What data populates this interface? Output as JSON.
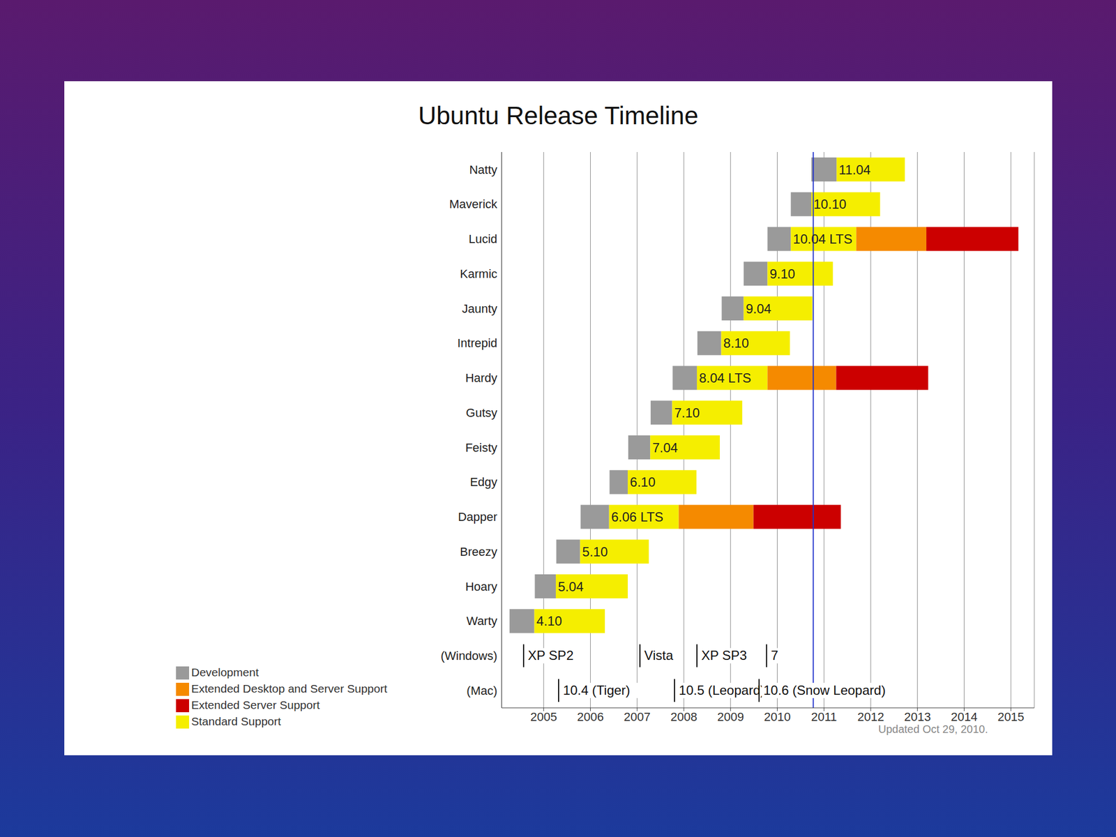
{
  "chart_data": {
    "type": "timeline",
    "title": "Ubuntu Release Timeline",
    "orientation": "horizontal",
    "categories": [
      "Natty",
      "Maverick",
      "Lucid",
      "Karmic",
      "Jaunty",
      "Intrepid",
      "Hardy",
      "Gutsy",
      "Feisty",
      "Edgy",
      "Dapper",
      "Breezy",
      "Hoary",
      "Warty",
      "(Windows)",
      "(Mac)"
    ],
    "versions": [
      "11.04",
      "10.10",
      "10.04 LTS",
      "9.10",
      "9.04",
      "8.10",
      "8.04 LTS",
      "7.10",
      "7.04",
      "6.10",
      "6.06 LTS",
      "5.10",
      "5.04",
      "4.10",
      null,
      null
    ],
    "series": [
      {
        "name": "Development",
        "color": "#9a9a9a",
        "values": [
          [
            2010.73,
            2011.27
          ],
          [
            2010.29,
            2010.73
          ],
          [
            2009.79,
            2010.29
          ],
          [
            2009.28,
            2009.79
          ],
          [
            2008.81,
            2009.28
          ],
          [
            2008.29,
            2008.8
          ],
          [
            2007.76,
            2008.28
          ],
          [
            2007.29,
            2007.75
          ],
          [
            2006.81,
            2007.28
          ],
          [
            2006.41,
            2006.8
          ],
          [
            2005.79,
            2006.4
          ],
          [
            2005.27,
            2005.78
          ],
          [
            2004.81,
            2005.26
          ],
          [
            2004.27,
            2004.8
          ],
          null,
          null
        ]
      },
      {
        "name": "Standard Support",
        "color": "#f5ee00",
        "values": [
          [
            2011.27,
            2012.73
          ],
          [
            2010.73,
            2012.2
          ],
          [
            2010.29,
            2011.69
          ],
          [
            2009.79,
            2011.19
          ],
          [
            2009.28,
            2010.75
          ],
          [
            2008.8,
            2010.27
          ],
          [
            2008.28,
            2009.79
          ],
          [
            2007.75,
            2009.25
          ],
          [
            2007.28,
            2008.77
          ],
          [
            2006.8,
            2008.27
          ],
          [
            2006.4,
            2007.89
          ],
          [
            2005.78,
            2007.25
          ],
          [
            2005.26,
            2006.8
          ],
          [
            2004.8,
            2006.31
          ],
          null,
          null
        ]
      },
      {
        "name": "Extended Desktop and Server Support",
        "color": "#f58a00",
        "values": [
          null,
          null,
          [
            2011.69,
            2013.19
          ],
          null,
          null,
          null,
          [
            2009.79,
            2011.26
          ],
          null,
          null,
          null,
          [
            2007.89,
            2009.49
          ],
          null,
          null,
          null,
          null,
          null
        ]
      },
      {
        "name": "Extended Server Support",
        "color": "#cc0000",
        "values": [
          null,
          null,
          [
            2013.19,
            2015.16
          ],
          null,
          null,
          null,
          [
            2011.26,
            2013.23
          ],
          null,
          null,
          null,
          [
            2009.49,
            2011.36
          ],
          null,
          null,
          null,
          null,
          null
        ]
      }
    ],
    "events": [
      {
        "category": "(Windows)",
        "x": 2004.57,
        "label": "XP SP2"
      },
      {
        "category": "(Windows)",
        "x": 2007.06,
        "label": "Vista"
      },
      {
        "category": "(Windows)",
        "x": 2008.28,
        "label": "XP SP3"
      },
      {
        "category": "(Windows)",
        "x": 2009.77,
        "label": "7"
      },
      {
        "category": "(Mac)",
        "x": 2005.32,
        "label": "10.4 (Tiger)"
      },
      {
        "category": "(Mac)",
        "x": 2007.8,
        "label": "10.5 (Leopard)"
      },
      {
        "category": "(Mac)",
        "x": 2009.61,
        "label": "10.6 (Snow Leopard)"
      }
    ],
    "current_date": 2010.77,
    "note": "Updated Oct 29, 2010.",
    "xlim": [
      2004.1,
      2015.5
    ],
    "xticks": [
      2005,
      2006,
      2007,
      2008,
      2009,
      2010,
      2011,
      2012,
      2013,
      2014,
      2015
    ],
    "grid": true,
    "legend": "bottom left"
  }
}
